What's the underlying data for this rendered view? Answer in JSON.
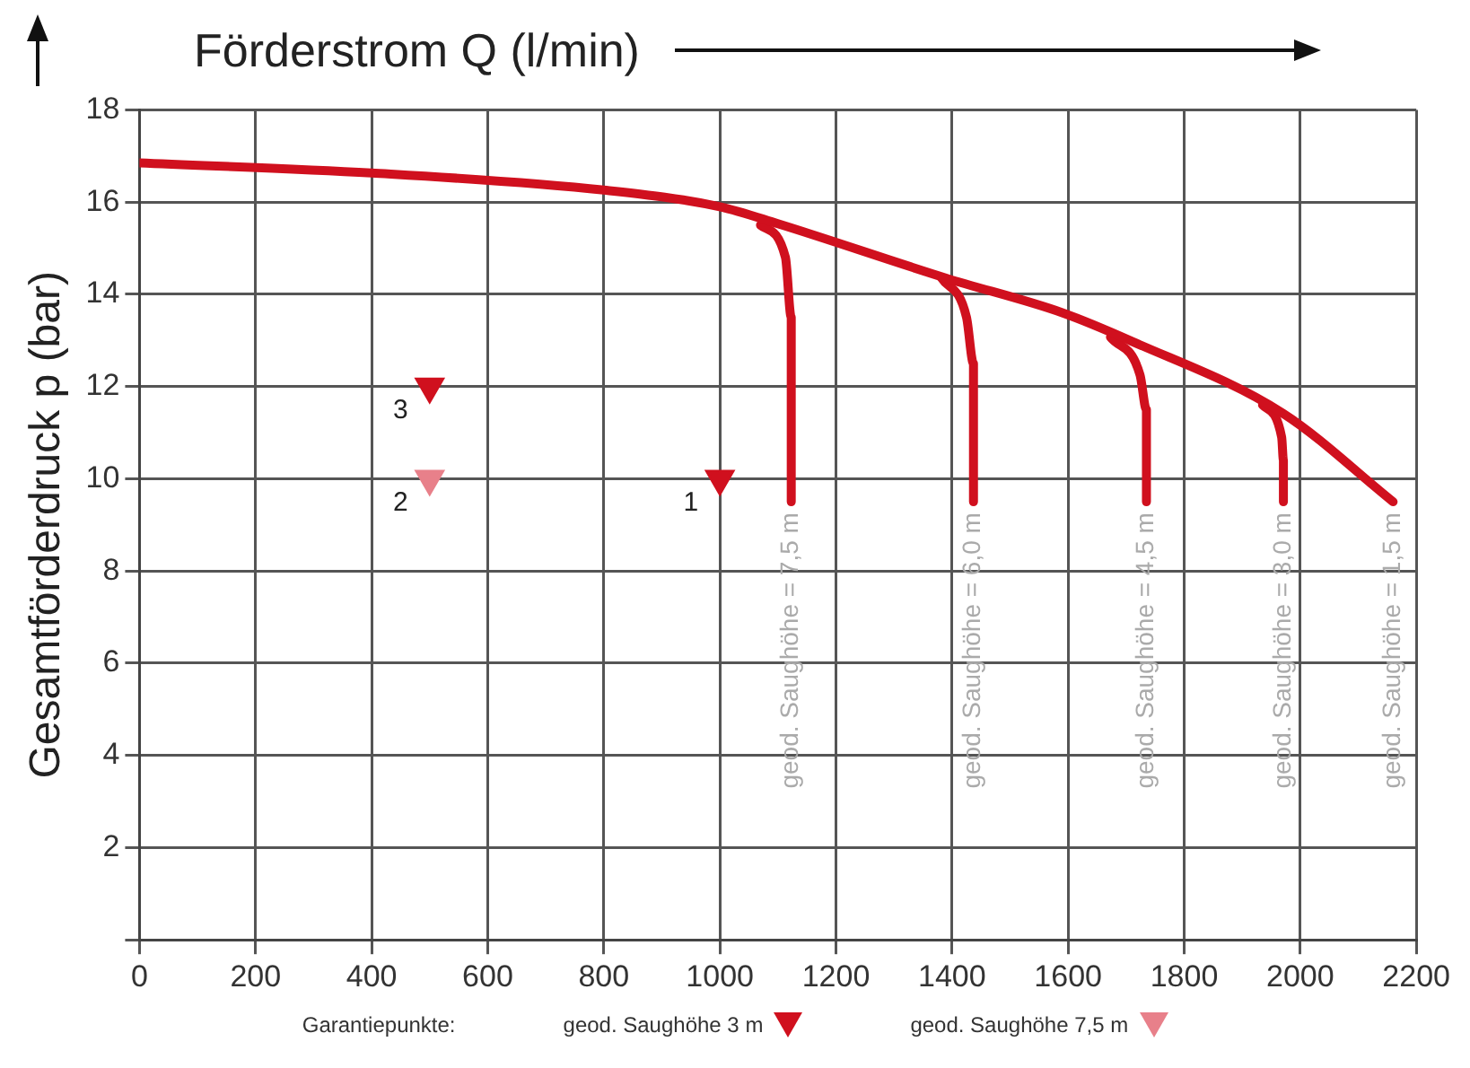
{
  "chart_data": {
    "type": "line",
    "xlabel": "Förderstrom Q (l/min)",
    "ylabel": "Gesamtförderdruck p (bar)",
    "legend_title": "Garantiepunkte:",
    "xlim": [
      0,
      2200
    ],
    "xticks": [
      0,
      200,
      400,
      600,
      800,
      1000,
      1200,
      1400,
      1600,
      1800,
      2000,
      2200
    ],
    "ylim": [
      0,
      18
    ],
    "yticks": [
      {
        "value": 0,
        "label": null
      },
      2,
      4,
      6,
      8,
      10,
      12,
      14,
      16,
      18
    ],
    "grid": true,
    "legend": "bottom",
    "marker": "none",
    "line_style": "solid",
    "series": [
      {
        "color": "#d0101e",
        "x": [
          0,
          400,
          800,
          1000,
          1100,
          1390,
          1590,
          1710,
          1970,
          2160
        ],
        "values": [
          16.85,
          16.63,
          16.26,
          15.9,
          15.53,
          14.35,
          13.6,
          12.98,
          11.42,
          9.5
        ]
      },
      {
        "color": "#d0101e",
        "x": [
          1070,
          1113,
          1123,
          1123
        ],
        "values": [
          15.5,
          14.8,
          13.5,
          9.5
        ]
      },
      {
        "color": "#d0101e",
        "x": [
          1382,
          1425,
          1437,
          1437
        ],
        "values": [
          14.35,
          13.5,
          12.5,
          9.5
        ]
      },
      {
        "color": "#d0101e",
        "x": [
          1673,
          1724,
          1735,
          1735
        ],
        "values": [
          13.07,
          12.25,
          11.5,
          9.5
        ]
      },
      {
        "color": "#d0101e",
        "x": [
          1935,
          1968,
          1971,
          1971
        ],
        "values": [
          11.6,
          10.9,
          10.4,
          9.5
        ]
      },
      {
        "type": "scatter",
        "name": "geod. Saughöhe 3 m",
        "color": "#d0101e",
        "marker": "triangle",
        "x": [
          500,
          1000
        ],
        "values": [
          12,
          10
        ]
      },
      {
        "type": "scatter",
        "name": "geod. Saughöhe 7,5 m",
        "color": "#e8808a",
        "marker": "triangle",
        "x": [
          500
        ],
        "values": [
          10
        ]
      }
    ],
    "annotations": [
      {
        "text": "3",
        "x": 500,
        "y": 12
      },
      {
        "text": "2",
        "x": 500,
        "y": 10
      },
      {
        "text": "1",
        "x": 1000,
        "y": 10
      },
      {
        "text": "geod. Saughöhe = 7,5 m",
        "x": 1123,
        "y": 9.5
      },
      {
        "text": "geod. Saughöhe = 6,0 m",
        "x": 1437,
        "y": 9.5
      },
      {
        "text": "geod. Saughöhe = 4,5 m",
        "x": 1735,
        "y": 9.5
      },
      {
        "text": "geod. Saughöhe = 3,0 m",
        "x": 1971,
        "y": 9.5
      },
      {
        "text": "geod. Saughöhe = 1,5 m",
        "x": 2160,
        "y": 9.5
      }
    ]
  }
}
